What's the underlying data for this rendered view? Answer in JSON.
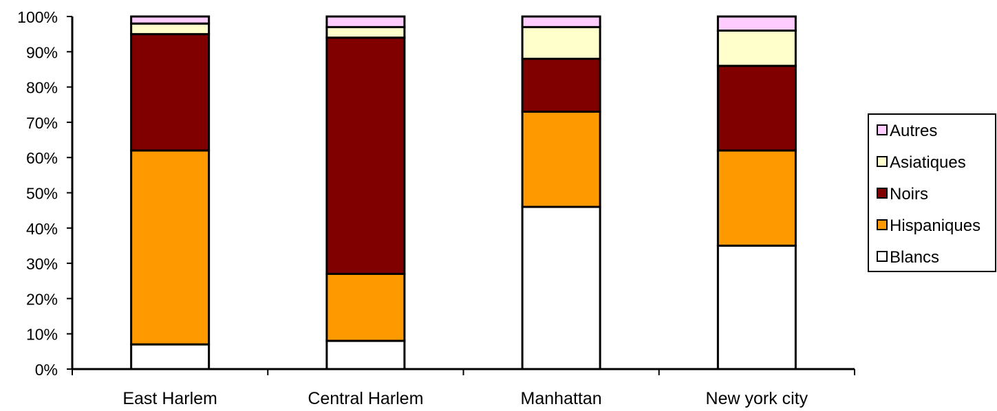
{
  "chart_data": {
    "type": "bar",
    "stacked": true,
    "percent": true,
    "categories": [
      "East Harlem",
      "Central Harlem",
      "Manhattan",
      "New york city"
    ],
    "series": [
      {
        "name": "Blancs",
        "color": "#ffffff",
        "values": [
          7,
          8,
          46,
          35
        ]
      },
      {
        "name": "Hispaniques",
        "color": "#ff9900",
        "values": [
          55,
          19,
          27,
          27
        ]
      },
      {
        "name": "Noirs",
        "color": "#800000",
        "values": [
          33,
          67,
          15,
          24
        ]
      },
      {
        "name": "Asiatiques",
        "color": "#ffffcc",
        "values": [
          3,
          3,
          9,
          10
        ]
      },
      {
        "name": "Autres",
        "color": "#ffccff",
        "values": [
          2,
          3,
          3,
          4
        ]
      }
    ],
    "ylim": [
      0,
      100
    ],
    "yticks": [
      "0%",
      "10%",
      "20%",
      "30%",
      "40%",
      "50%",
      "60%",
      "70%",
      "80%",
      "90%",
      "100%"
    ],
    "legend": {
      "placement": "right",
      "entries": [
        "Autres",
        "Asiatiques",
        "Noirs",
        "Hispaniques",
        "Blancs"
      ]
    },
    "grid": false
  }
}
